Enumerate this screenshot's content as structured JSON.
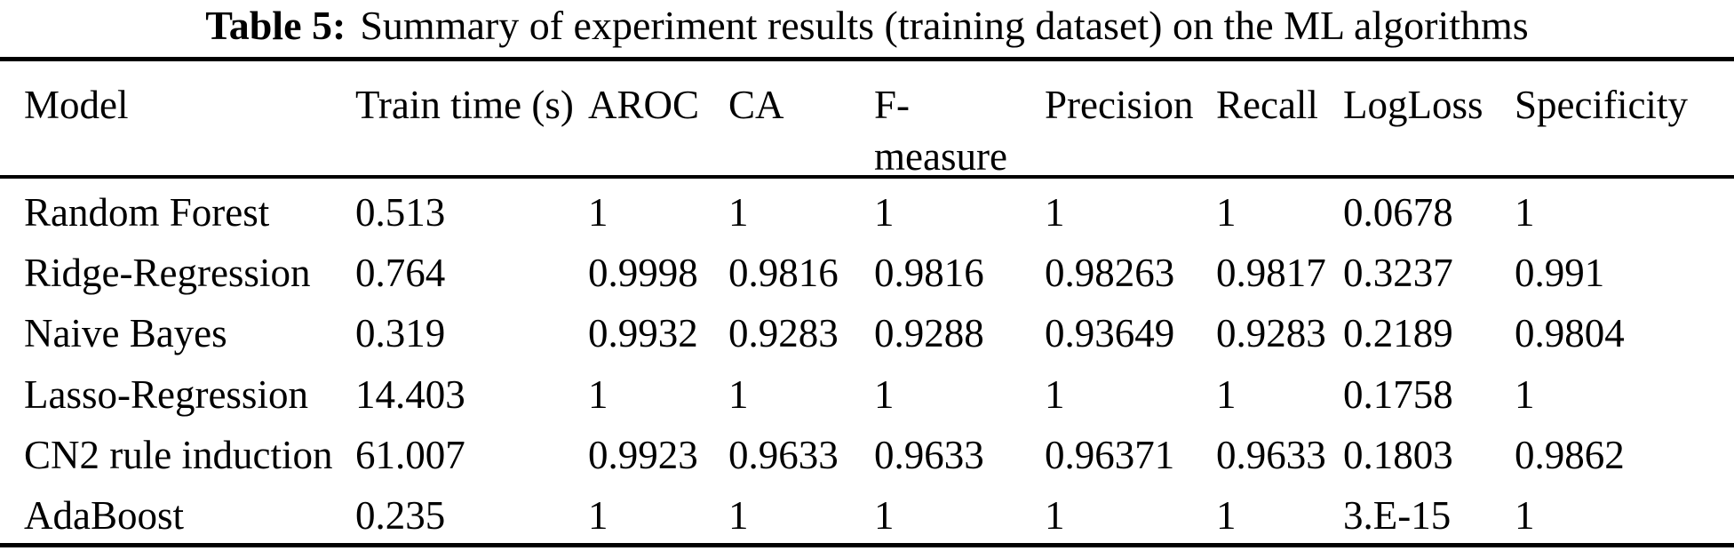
{
  "caption": {
    "label": "Table 5:",
    "text": "Summary of experiment results (training dataset) on the ML algorithms"
  },
  "table": {
    "columns": [
      "Model",
      "Train time (s)",
      "AROC",
      "CA",
      "F-measure",
      "Precision",
      "Recall",
      "LogLoss",
      "Specificity"
    ],
    "rows": [
      [
        "Random Forest",
        "0.513",
        "1",
        "1",
        "1",
        "1",
        "1",
        "0.0678",
        "1"
      ],
      [
        "Ridge-Regression",
        "0.764",
        "0.9998",
        "0.9816",
        "0.9816",
        "0.98263",
        "0.9817",
        "0.3237",
        "0.991"
      ],
      [
        "Naive Bayes",
        "0.319",
        "0.9932",
        "0.9283",
        "0.9288",
        "0.93649",
        "0.9283",
        "0.2189",
        "0.9804"
      ],
      [
        "Lasso-Regression",
        "14.403",
        "1",
        "1",
        "1",
        "1",
        "1",
        "0.1758",
        "1"
      ],
      [
        "CN2 rule induction",
        "61.007",
        "0.9923",
        "0.9633",
        "0.9633",
        "0.96371",
        "0.9633",
        "0.1803",
        "0.9862"
      ],
      [
        "AdaBoost",
        "0.235",
        "1",
        "1",
        "1",
        "1",
        "1",
        "3.E-15",
        "1"
      ]
    ]
  },
  "colors": {
    "text": "#000000",
    "background": "#ffffff",
    "rule": "#000000"
  }
}
